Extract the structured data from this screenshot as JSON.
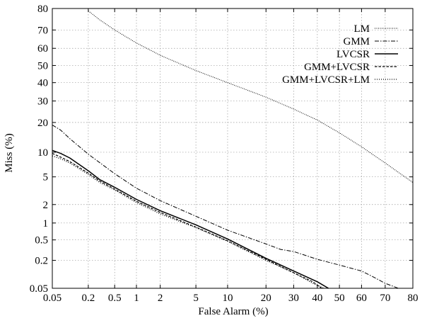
{
  "chart_data": {
    "type": "line",
    "title": "",
    "xlabel": "False Alarm (%)",
    "ylabel": "Miss (%)",
    "x_scale": "probit",
    "y_scale": "probit",
    "xlim": [
      0.05,
      80
    ],
    "ylim": [
      0.05,
      80
    ],
    "grid": true,
    "legend_position": "top-right",
    "x_ticks": [
      "0.05",
      "0.2",
      "0.5",
      "1",
      "2",
      "5",
      "10",
      "20",
      "30",
      "40",
      "50",
      "60",
      "70",
      "80"
    ],
    "y_ticks": [
      "0.05",
      "0.2",
      "0.5",
      "1",
      "2",
      "5",
      "10",
      "20",
      "30",
      "40",
      "50",
      "60",
      "70",
      "80"
    ],
    "series": [
      {
        "name": "LM",
        "style": "dotted-fine",
        "points": [
          [
            0.2,
            79
          ],
          [
            0.3,
            75
          ],
          [
            0.5,
            70
          ],
          [
            1,
            63
          ],
          [
            2,
            56
          ],
          [
            5,
            47
          ],
          [
            10,
            40
          ],
          [
            20,
            32
          ],
          [
            30,
            26
          ],
          [
            40,
            21
          ],
          [
            50,
            16
          ],
          [
            60,
            11.5
          ],
          [
            70,
            7.5
          ],
          [
            80,
            4.2
          ]
        ]
      },
      {
        "name": "GMM",
        "style": "dash-dot",
        "points": [
          [
            0.05,
            19
          ],
          [
            0.07,
            17
          ],
          [
            0.1,
            14
          ],
          [
            0.2,
            9.5
          ],
          [
            0.5,
            5.5
          ],
          [
            1,
            3.5
          ],
          [
            2,
            2.3
          ],
          [
            5,
            1.3
          ],
          [
            10,
            0.75
          ],
          [
            20,
            0.42
          ],
          [
            25,
            0.33
          ],
          [
            30,
            0.3
          ],
          [
            40,
            0.21
          ],
          [
            50,
            0.16
          ],
          [
            60,
            0.12
          ],
          [
            65,
            0.09
          ],
          [
            70,
            0.065
          ],
          [
            75,
            0.05
          ]
        ]
      },
      {
        "name": "LVCSR",
        "style": "solid",
        "points": [
          [
            0.05,
            10.5
          ],
          [
            0.07,
            9.7
          ],
          [
            0.1,
            8.6
          ],
          [
            0.2,
            6
          ],
          [
            0.3,
            4.6
          ],
          [
            0.5,
            3.6
          ],
          [
            1,
            2.4
          ],
          [
            2,
            1.6
          ],
          [
            5,
            0.93
          ],
          [
            10,
            0.52
          ],
          [
            20,
            0.22
          ],
          [
            30,
            0.12
          ],
          [
            40,
            0.07
          ],
          [
            45,
            0.05
          ]
        ]
      },
      {
        "name": "GMM+LVCSR",
        "style": "dashed",
        "points": [
          [
            0.05,
            9.7
          ],
          [
            0.07,
            8.8
          ],
          [
            0.1,
            7.8
          ],
          [
            0.2,
            5.6
          ],
          [
            0.3,
            4.4
          ],
          [
            0.5,
            3.4
          ],
          [
            1,
            2.25
          ],
          [
            2,
            1.5
          ],
          [
            5,
            0.85
          ],
          [
            10,
            0.48
          ],
          [
            20,
            0.21
          ],
          [
            30,
            0.11
          ],
          [
            38,
            0.07
          ],
          [
            42,
            0.05
          ]
        ]
      },
      {
        "name": "GMM+LVCSR+LM",
        "style": "dotted",
        "points": [
          [
            0.05,
            9.1
          ],
          [
            0.07,
            8.4
          ],
          [
            0.1,
            7.5
          ],
          [
            0.2,
            5.4
          ],
          [
            0.3,
            4.2
          ],
          [
            0.5,
            3.3
          ],
          [
            1,
            2.15
          ],
          [
            2,
            1.42
          ],
          [
            5,
            0.83
          ],
          [
            10,
            0.47
          ],
          [
            20,
            0.2
          ],
          [
            30,
            0.11
          ],
          [
            38,
            0.065
          ],
          [
            43,
            0.05
          ]
        ]
      }
    ]
  }
}
